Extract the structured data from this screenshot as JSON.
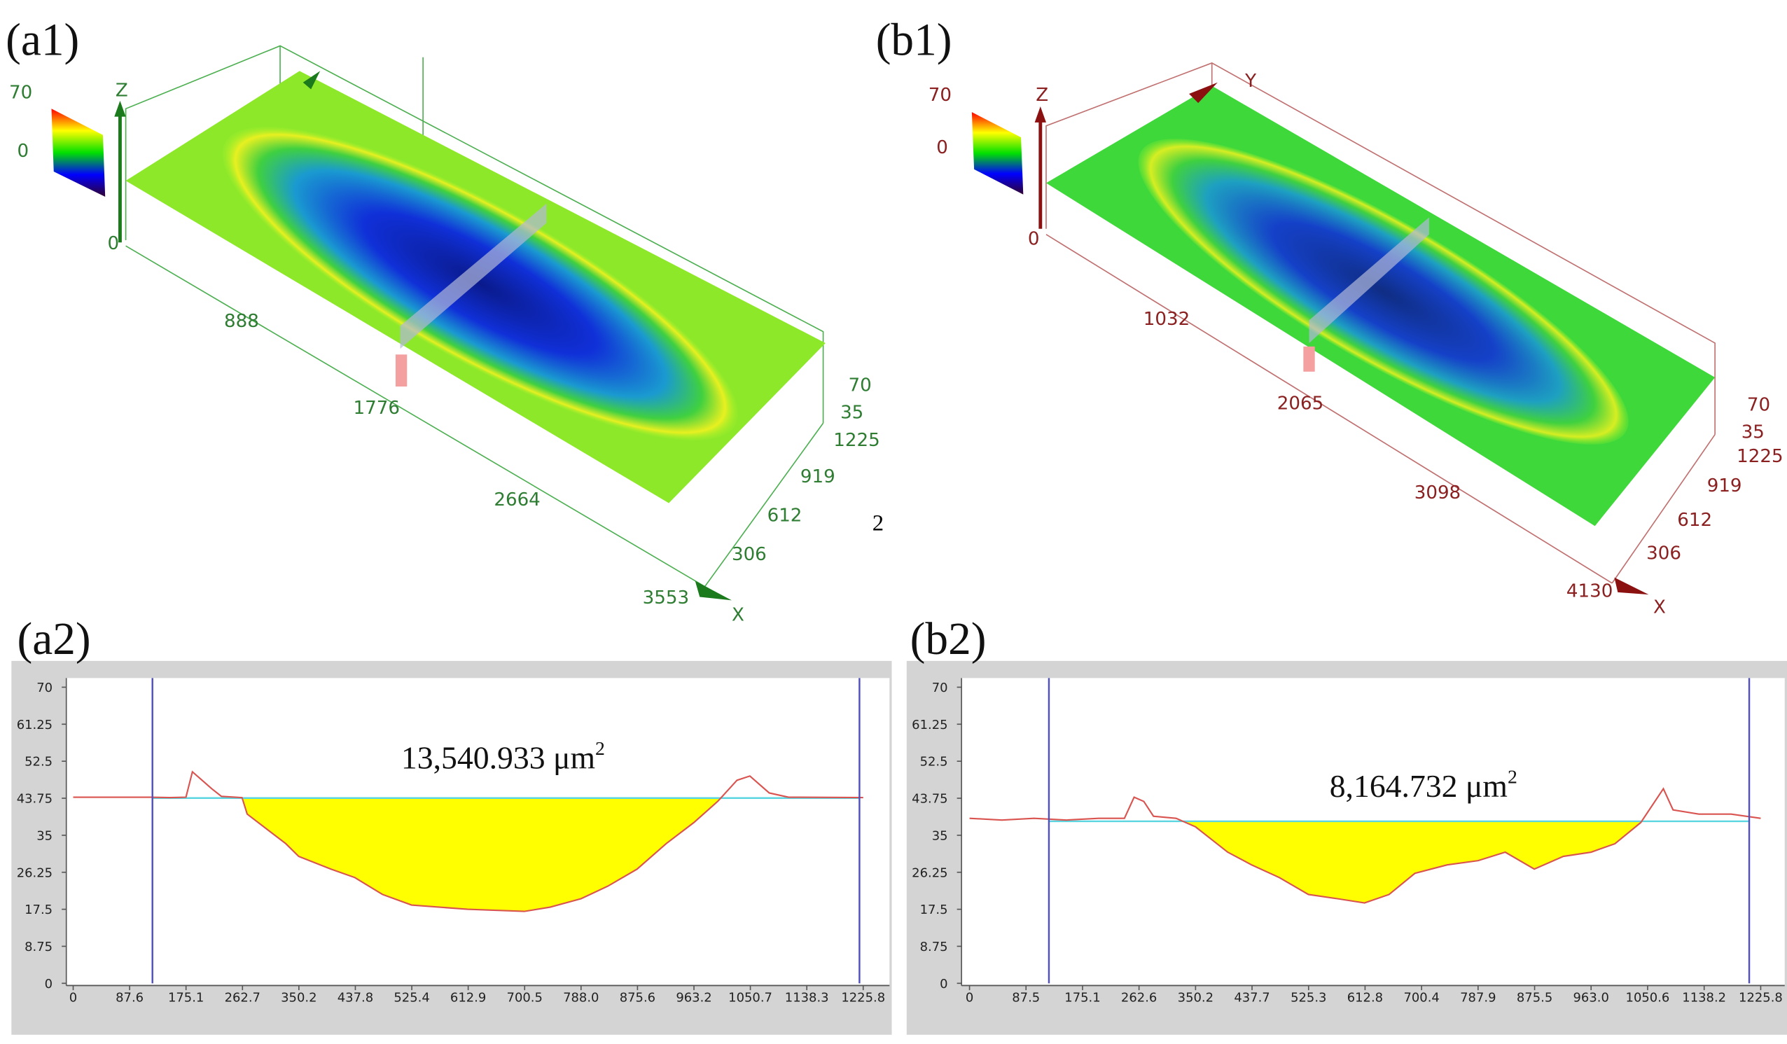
{
  "panels": [
    {
      "label": "(a1)",
      "z_ticks": [
        "70",
        "0"
      ],
      "origin": "0",
      "x_ticks": [
        "888",
        "1776",
        "2664",
        "3553"
      ],
      "y_ticks": [
        "1225",
        "919",
        "612",
        "306"
      ],
      "z_side_ticks": [
        "70",
        "35"
      ],
      "axis_labels": [
        "Z",
        "X"
      ],
      "note": "2"
    },
    {
      "label": "(b1)",
      "z_ticks": [
        "70",
        "0"
      ],
      "origin": "0",
      "x_ticks": [
        "1032",
        "2065",
        "3098",
        "4130"
      ],
      "y_ticks": [
        "1225",
        "919",
        "612",
        "306"
      ],
      "z_side_ticks": [
        "70",
        "35"
      ],
      "axis_labels": [
        "Z",
        "Y",
        "X"
      ]
    }
  ],
  "chart_data": [
    {
      "type": "line",
      "label": "(a2)",
      "annotation": "13,540.933 μm",
      "annotation_sup": "2",
      "xlim": [
        0,
        1225.8
      ],
      "xticks": [
        0,
        87.6,
        175.1,
        262.7,
        350.2,
        437.8,
        525.4,
        612.9,
        700.5,
        {
          "value": 788,
          "label": "788.0"
        },
        875.6,
        963.2,
        1050.7,
        1138.3,
        1225.8
      ],
      "ylim": [
        0,
        70
      ],
      "yticks": [
        0,
        8.75,
        17.5,
        26.25,
        35,
        43.75,
        52.5,
        61.25,
        70
      ],
      "x": [
        0,
        120,
        150,
        175,
        185,
        200,
        215,
        230,
        262,
        270,
        330,
        350,
        400,
        437,
        480,
        525,
        612,
        700,
        740,
        788,
        830,
        875,
        920,
        963,
        1000,
        1030,
        1050,
        1080,
        1110,
        1225.8
      ],
      "series": [
        {
          "color": "#d9534f",
          "values": [
            44,
            44,
            43.9,
            44,
            50,
            48,
            46,
            44.2,
            43.9,
            40,
            33,
            30,
            27,
            25,
            21,
            18.5,
            17.5,
            17,
            18,
            20,
            23,
            27,
            33,
            38,
            43,
            48,
            49,
            45,
            44,
            43.9
          ]
        }
      ],
      "reference": 43.8,
      "reference_color": "#5bd6e0",
      "fill_color": "#ffff00",
      "cursors": [
        123,
        1220
      ],
      "cursor_color": "#5050c0"
    },
    {
      "type": "line",
      "label": "(b2)",
      "annotation": "8,164.732 μm",
      "annotation_sup": "2",
      "xlim": [
        0,
        1225.8
      ],
      "xticks": [
        0,
        87.5,
        175.1,
        262.6,
        350.2,
        437.7,
        525.3,
        612.8,
        700.4,
        787.9,
        875.5,
        {
          "value": 963,
          "label": "963.0"
        },
        1050.6,
        1138.2,
        1225.8
      ],
      "ylim": [
        0,
        70
      ],
      "yticks": [
        0,
        8.75,
        17.5,
        26.25,
        35,
        43.75,
        52.5,
        61.25,
        70
      ],
      "x": [
        0,
        50,
        100,
        150,
        200,
        240,
        255,
        270,
        285,
        320,
        350,
        400,
        437,
        480,
        525,
        570,
        612,
        650,
        690,
        740,
        788,
        830,
        875,
        920,
        963,
        1000,
        1040,
        1075,
        1090,
        1130,
        1180,
        1225.8
      ],
      "series": [
        {
          "color": "#d9534f",
          "values": [
            39,
            38.6,
            39,
            38.6,
            39,
            39,
            44,
            43,
            39.5,
            39,
            37,
            31,
            28,
            25,
            21,
            20,
            19,
            21,
            26,
            28,
            29,
            31,
            27,
            30,
            31,
            33,
            38,
            46,
            41,
            40,
            40,
            39
          ]
        }
      ],
      "reference": 38.3,
      "reference_color": "#5bd6e0",
      "fill_color": "#ffff00",
      "cursors": [
        123,
        1208
      ],
      "cursor_color": "#5050c0"
    }
  ]
}
